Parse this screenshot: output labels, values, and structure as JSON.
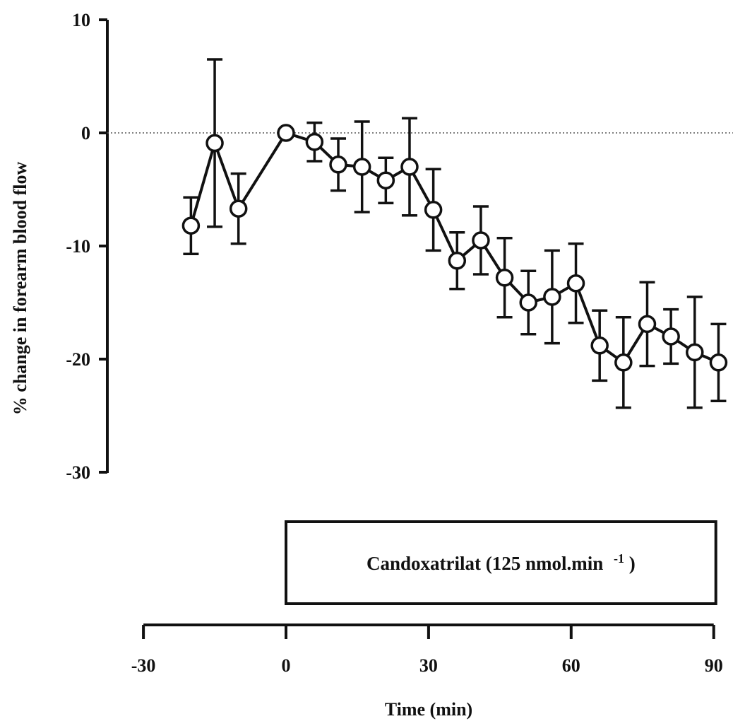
{
  "chart_data": {
    "type": "line",
    "ylabel": "% change in forearm blood flow",
    "xlabel": "Time (min)",
    "ylim": [
      -30,
      10
    ],
    "xlim": [
      -30,
      90
    ],
    "y_ticks": [
      "10",
      "0",
      "-10",
      "-20",
      "-30"
    ],
    "x_ticks": [
      "-30",
      "0",
      "30",
      "60",
      "90"
    ],
    "grid": false,
    "reference_line_y": 0,
    "treatment": {
      "label": "Candoxatrilat (125 nmol.min",
      "superscript": "-1",
      "label_close": ")",
      "start": 0,
      "end": 90
    },
    "series": [
      {
        "marker": "open-circle",
        "color": "#111111",
        "points": [
          {
            "x": -20,
            "y": -8.2,
            "err": 2.5
          },
          {
            "x": -15,
            "y": -0.9,
            "err": 7.4
          },
          {
            "x": -10,
            "y": -6.7,
            "err": 3.1
          },
          {
            "x": 0,
            "y": 0.0,
            "err": 0
          },
          {
            "x": 6,
            "y": -0.8,
            "err": 1.7
          },
          {
            "x": 11,
            "y": -2.8,
            "err": 2.3
          },
          {
            "x": 16,
            "y": -3.0,
            "err": 4.0
          },
          {
            "x": 21,
            "y": -4.2,
            "err": 2.0
          },
          {
            "x": 26,
            "y": -3.0,
            "err": 4.3
          },
          {
            "x": 31,
            "y": -6.8,
            "err": 3.6
          },
          {
            "x": 36,
            "y": -11.3,
            "err": 2.5
          },
          {
            "x": 41,
            "y": -9.5,
            "err": 3.0
          },
          {
            "x": 46,
            "y": -12.8,
            "err": 3.5
          },
          {
            "x": 51,
            "y": -15.0,
            "err": 2.8
          },
          {
            "x": 56,
            "y": -14.5,
            "err": 4.1
          },
          {
            "x": 61,
            "y": -13.3,
            "err": 3.5
          },
          {
            "x": 66,
            "y": -18.8,
            "err": 3.1
          },
          {
            "x": 71,
            "y": -20.3,
            "err": 4.0
          },
          {
            "x": 76,
            "y": -16.9,
            "err": 3.7
          },
          {
            "x": 81,
            "y": -18.0,
            "err": 2.4
          },
          {
            "x": 86,
            "y": -19.4,
            "err": 4.9
          },
          {
            "x": 91,
            "y": -20.3,
            "err": 3.4
          }
        ]
      }
    ]
  }
}
